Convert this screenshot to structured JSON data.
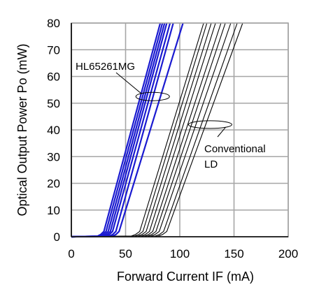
{
  "chart_data": {
    "type": "line",
    "title": "",
    "xlabel": "Forward Current IF (mA)",
    "ylabel": "Optical Output Power Po (mW)",
    "xlim": [
      0,
      200
    ],
    "ylim": [
      0,
      80
    ],
    "xticks": [
      "0",
      "50",
      "100",
      "150",
      "200"
    ],
    "yticks": [
      "0",
      "10",
      "20",
      "30",
      "40",
      "50",
      "60",
      "70",
      "80"
    ],
    "grid": true,
    "annotations": [
      {
        "text": "HL65261MG",
        "target_x": 75,
        "target_y": 52.5
      },
      {
        "text": "Conventional",
        "text2": "LD",
        "target_x": 128,
        "target_y": 42
      }
    ],
    "series": [
      {
        "group": "HL65261MG",
        "color": "#1a1ad0",
        "x": [
          0,
          24,
          27,
          30,
          82
        ],
        "y": [
          0,
          0.2,
          0.8,
          2,
          80
        ]
      },
      {
        "group": "HL65261MG",
        "color": "#1a1ad0",
        "x": [
          0,
          26,
          29,
          32,
          84
        ],
        "y": [
          0,
          0.2,
          0.8,
          2,
          80
        ]
      },
      {
        "group": "HL65261MG",
        "color": "#1a1ad0",
        "x": [
          0,
          28,
          31,
          34,
          86
        ],
        "y": [
          0,
          0.2,
          0.8,
          2,
          80
        ]
      },
      {
        "group": "HL65261MG",
        "color": "#1a1ad0",
        "x": [
          0,
          30,
          33,
          36,
          88
        ],
        "y": [
          0,
          0.2,
          0.8,
          2,
          80
        ]
      },
      {
        "group": "HL65261MG",
        "color": "#1a1ad0",
        "x": [
          0,
          32,
          35,
          38,
          91
        ],
        "y": [
          0,
          0.2,
          0.8,
          2,
          80
        ]
      },
      {
        "group": "HL65261MG",
        "color": "#1a1ad0",
        "x": [
          0,
          35,
          38,
          41,
          94
        ],
        "y": [
          0,
          0.2,
          0.8,
          2,
          80
        ]
      },
      {
        "group": "HL65261MG",
        "color": "#1a1ad0",
        "x": [
          0,
          38,
          41,
          44,
          103
        ],
        "y": [
          0,
          0.2,
          0.8,
          2,
          80
        ]
      },
      {
        "group": "Conventional LD",
        "color": "#000000",
        "x": [
          0,
          55,
          59,
          63,
          122
        ],
        "y": [
          0,
          0.2,
          0.8,
          2,
          80
        ]
      },
      {
        "group": "Conventional LD",
        "color": "#000000",
        "x": [
          0,
          58,
          62,
          66,
          125
        ],
        "y": [
          0,
          0.2,
          0.8,
          2,
          80
        ]
      },
      {
        "group": "Conventional LD",
        "color": "#000000",
        "x": [
          0,
          61,
          65,
          69,
          129
        ],
        "y": [
          0,
          0.2,
          0.8,
          2,
          80
        ]
      },
      {
        "group": "Conventional LD",
        "color": "#000000",
        "x": [
          0,
          64,
          68,
          72,
          133
        ],
        "y": [
          0,
          0.2,
          0.8,
          2,
          80
        ]
      },
      {
        "group": "Conventional LD",
        "color": "#000000",
        "x": [
          0,
          67,
          71,
          75,
          138
        ],
        "y": [
          0,
          0.2,
          0.8,
          2,
          80
        ]
      },
      {
        "group": "Conventional LD",
        "color": "#000000",
        "x": [
          0,
          70,
          74,
          78,
          142
        ],
        "y": [
          0,
          0.2,
          0.8,
          2,
          80
        ]
      },
      {
        "group": "Conventional LD",
        "color": "#000000",
        "x": [
          0,
          73,
          77,
          81,
          147
        ],
        "y": [
          0,
          0.2,
          0.8,
          2,
          80
        ]
      },
      {
        "group": "Conventional LD",
        "color": "#000000",
        "x": [
          0,
          77,
          81,
          85,
          153
        ],
        "y": [
          0,
          0.2,
          0.8,
          2,
          80
        ]
      },
      {
        "group": "Conventional LD",
        "color": "#000000",
        "x": [
          0,
          80,
          84,
          88,
          158
        ],
        "y": [
          0,
          0.2,
          0.8,
          2,
          80
        ]
      }
    ]
  }
}
